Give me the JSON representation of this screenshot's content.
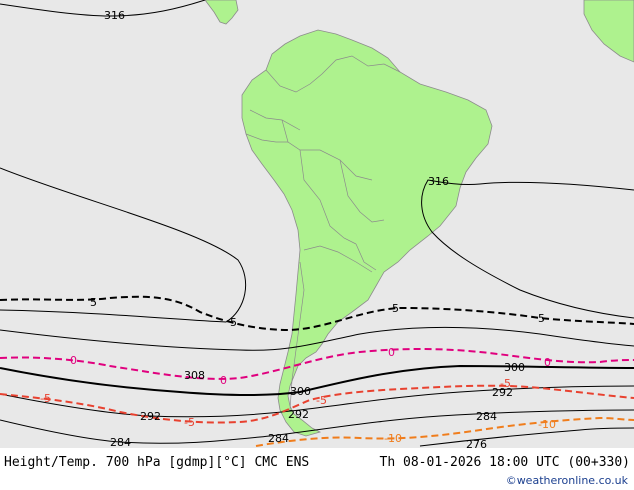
{
  "colors": {
    "ocean": "#e8e8e8",
    "land": "#aef28e",
    "border": "#8c8c8c",
    "height_contour": "#000000",
    "temp_zero": "#e0007e",
    "temp_minus5": "#e8412f",
    "temp_minus10": "#f07d1c",
    "credit": "#1b3f8f"
  },
  "labels": {
    "h316_a": "316",
    "h316_b": "316",
    "h308": "308",
    "h300_a": "300",
    "h300_b": "300",
    "h292_a": "292",
    "h292_b": "292",
    "h292_c": "292",
    "h284_a": "284",
    "h284_b": "284",
    "h284_c": "284",
    "h276": "276",
    "t5_a": "5",
    "t5_b": "5",
    "t5_c": "5",
    "t5_d": "5",
    "t0_a": "0",
    "t0_b": "0",
    "t0_c": "0",
    "t0_d": "0",
    "tm5_a": "-5",
    "tm5_b": "-5",
    "tm5_c": "-5",
    "tm5_d": "-5",
    "tm10_a": "-10",
    "tm10_b": "-10"
  },
  "footer": {
    "title": "Height/Temp. 700 hPa [gdmp][°C] CMC ENS",
    "valid_time": "Th 08-01-2026 18:00 UTC (00+330)",
    "credit": "©weatheronline.co.uk"
  }
}
